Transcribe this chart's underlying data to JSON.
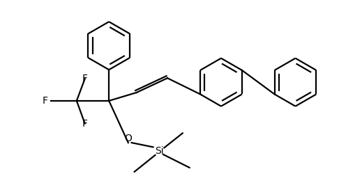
{
  "bg_color": "#ffffff",
  "line_color": "#000000",
  "line_width": 1.6,
  "font_size": 10,
  "fig_width": 4.86,
  "fig_height": 2.76,
  "dpi": 100,
  "xlim": [
    0,
    10
  ],
  "ylim": [
    0,
    5.7
  ]
}
